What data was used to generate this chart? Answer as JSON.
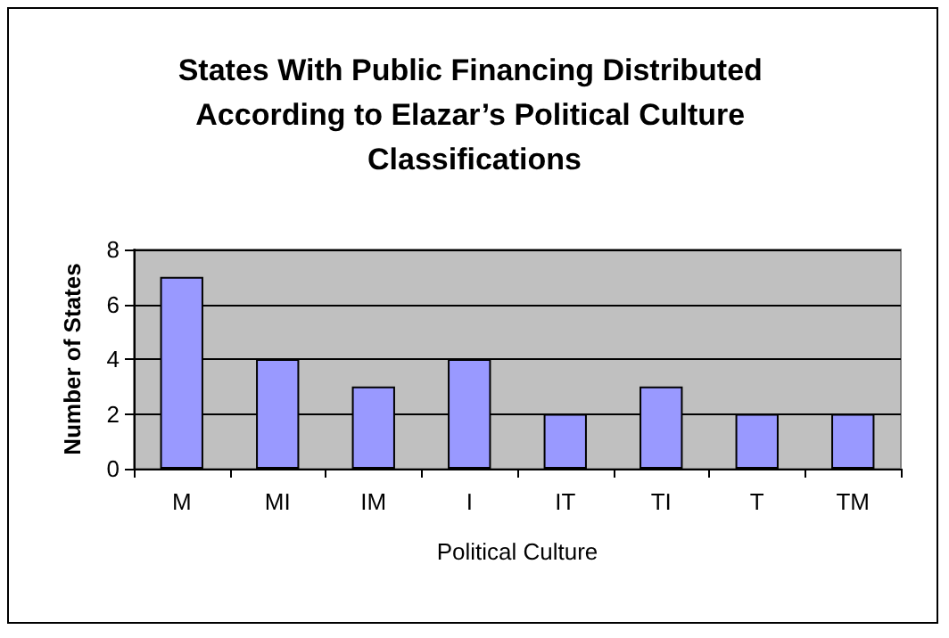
{
  "chart_data": {
    "type": "bar",
    "title": "States With Public Financing Distributed According to Elazar’s Political Culture Classifications",
    "xlabel": "Political Culture",
    "ylabel": "Number of States",
    "categories": [
      "M",
      "MI",
      "IM",
      "I",
      "IT",
      "TI",
      "T",
      "TM"
    ],
    "values": [
      7,
      4,
      3,
      4,
      2,
      3,
      2,
      2
    ],
    "color": "#9999ff",
    "ylim": [
      0,
      8
    ],
    "yticks": [
      0,
      2,
      4,
      6,
      8
    ],
    "grid": "y"
  }
}
